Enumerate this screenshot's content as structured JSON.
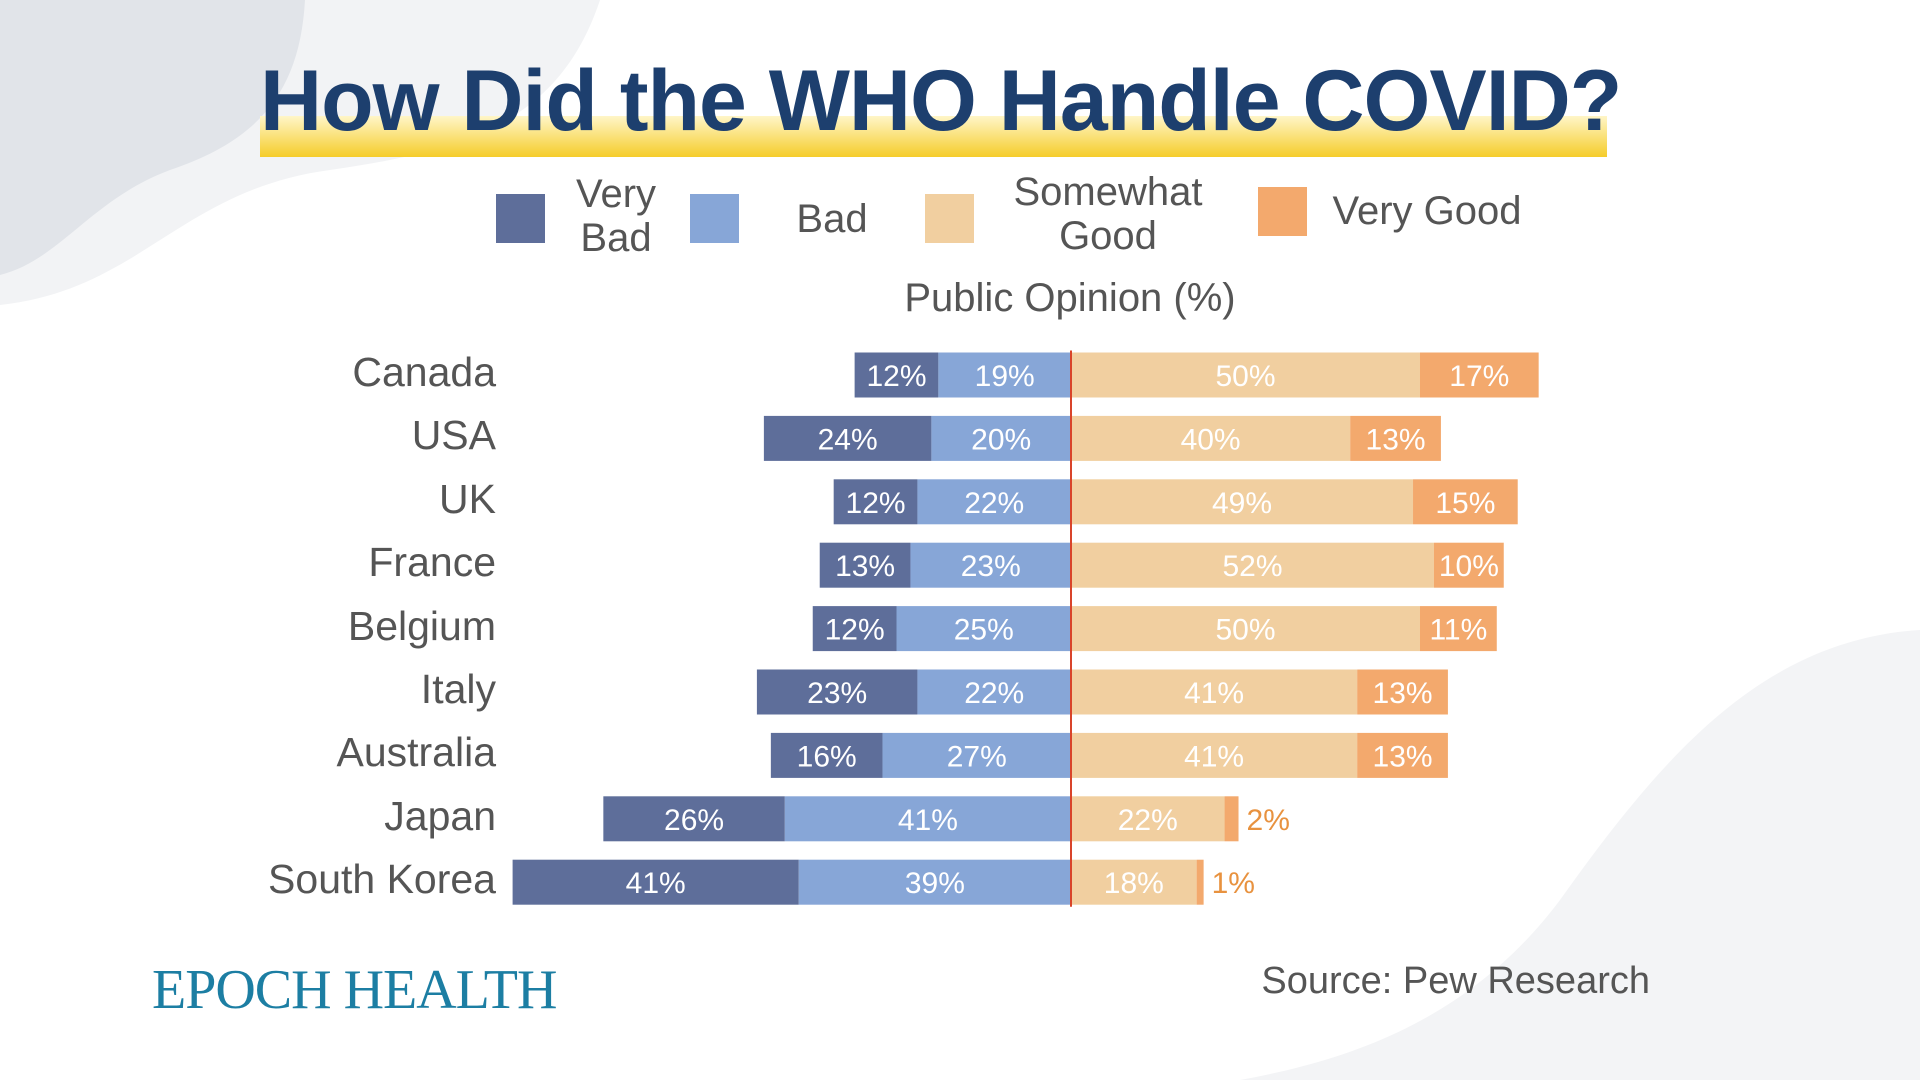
{
  "chart_data": {
    "type": "bar",
    "title": "How Did the WHO Handle COVID?",
    "xlabel": "Public Opinion (%)",
    "legend": [
      "Very Bad",
      "Bad",
      "Somewhat Good",
      "Very Good"
    ],
    "legend_position": "top",
    "colors": {
      "very_bad": "#5e6e9a",
      "bad": "#87a6d7",
      "somewhat_good": "#f1cfa0",
      "very_good": "#f3a96d",
      "center_line": "#d9442a"
    },
    "categories": [
      "Canada",
      "USA",
      "UK",
      "France",
      "Belgium",
      "Italy",
      "Australia",
      "Japan",
      "South Korea"
    ],
    "series": [
      {
        "name": "Very Bad",
        "values": [
          12,
          24,
          12,
          13,
          12,
          23,
          16,
          26,
          41
        ]
      },
      {
        "name": "Bad",
        "values": [
          19,
          20,
          22,
          23,
          25,
          22,
          27,
          41,
          39
        ]
      },
      {
        "name": "Somewhat Good",
        "values": [
          50,
          40,
          49,
          52,
          50,
          41,
          41,
          22,
          18
        ]
      },
      {
        "name": "Very Good",
        "values": [
          17,
          13,
          15,
          10,
          11,
          13,
          13,
          2,
          1
        ]
      }
    ]
  },
  "legend_labels": {
    "very_bad": "Very\nBad",
    "bad": "Bad",
    "somewhat_good": "Somewhat\nGood",
    "very_good": "Very Good"
  },
  "brand": "EPOCH HEALTH",
  "source": "Source: Pew Research"
}
